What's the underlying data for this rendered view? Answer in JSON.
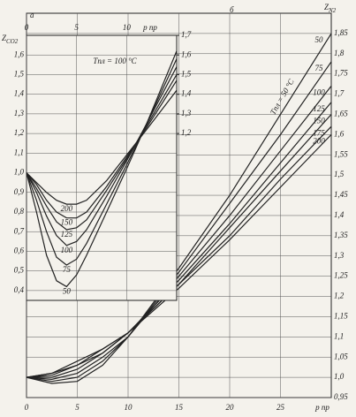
{
  "chart_data": [
    {
      "type": "line",
      "panel": "а",
      "ylabel": "Z",
      "ylabel_sub": "CO2",
      "xlabel": "р пр",
      "annotation": "Tпл = 100 °С",
      "x": [
        0,
        1,
        2,
        3,
        4,
        5,
        6,
        8,
        10,
        12,
        15
      ],
      "xlim": [
        0,
        15
      ],
      "xticks": [
        0,
        5,
        10
      ],
      "ylim": [
        0.35,
        1.7
      ],
      "yticks": [
        {
          "value": 0.4,
          "label": "0,4"
        },
        {
          "value": 0.5,
          "label": "0,5"
        },
        {
          "value": 0.6,
          "label": "0,6"
        },
        {
          "value": 0.7,
          "label": "0,7"
        },
        {
          "value": 0.8,
          "label": "0,8"
        },
        {
          "value": 0.9,
          "label": "0,9"
        },
        {
          "value": 1.0,
          "label": "1,0"
        },
        {
          "value": 1.1,
          "label": "1,1"
        },
        {
          "value": 1.2,
          "label": "1,2"
        },
        {
          "value": 1.3,
          "label": "1,3"
        },
        {
          "value": 1.4,
          "label": "1,4"
        },
        {
          "value": 1.5,
          "label": "1,5"
        },
        {
          "value": 1.6,
          "label": "1,6"
        }
      ],
      "y2lim": [
        0.35,
        1.7
      ],
      "y2ticks": [
        {
          "value": 1.2,
          "label": "1,2"
        },
        {
          "value": 1.3,
          "label": "1,3"
        },
        {
          "value": 1.4,
          "label": "1,4"
        },
        {
          "value": 1.5,
          "label": "1,5"
        },
        {
          "value": 1.6,
          "label": "1,6"
        },
        {
          "value": 1.7,
          "label": "1,7"
        }
      ],
      "grid": true,
      "series": [
        {
          "name": "50",
          "color": "#222222",
          "values": [
            1.0,
            0.8,
            0.58,
            0.45,
            0.42,
            0.48,
            0.58,
            0.8,
            1.02,
            1.25,
            1.62
          ]
        },
        {
          "name": "75",
          "color": "#222222",
          "values": [
            1.0,
            0.86,
            0.7,
            0.57,
            0.53,
            0.56,
            0.64,
            0.84,
            1.04,
            1.25,
            1.58
          ]
        },
        {
          "name": "100",
          "color": "#222222",
          "values": [
            1.0,
            0.9,
            0.78,
            0.68,
            0.63,
            0.65,
            0.71,
            0.88,
            1.06,
            1.25,
            1.54
          ]
        },
        {
          "name": "125",
          "color": "#222222",
          "values": [
            1.0,
            0.92,
            0.83,
            0.75,
            0.71,
            0.72,
            0.76,
            0.91,
            1.07,
            1.24,
            1.5
          ]
        },
        {
          "name": "150",
          "color": "#222222",
          "values": [
            1.0,
            0.94,
            0.86,
            0.8,
            0.77,
            0.77,
            0.8,
            0.93,
            1.08,
            1.23,
            1.47
          ]
        },
        {
          "name": "200",
          "color": "#222222",
          "values": [
            1.0,
            0.95,
            0.9,
            0.86,
            0.84,
            0.84,
            0.86,
            0.96,
            1.09,
            1.22,
            1.42
          ]
        }
      ]
    },
    {
      "type": "line",
      "panel": "б",
      "ylabel": "Z",
      "ylabel_sub": "N2",
      "xlabel": "р пр",
      "annotation": "Tпл = 50 °С",
      "x": [
        0,
        2.5,
        5,
        7.5,
        10,
        15,
        20,
        25,
        30
      ],
      "xlim": [
        0,
        30
      ],
      "xticks": [
        0,
        5,
        10,
        15,
        20,
        25
      ],
      "ylim": [
        0.95,
        1.9
      ],
      "yticks": [
        {
          "value": 0.95,
          "label": "0,95"
        },
        {
          "value": 1.0,
          "label": "1,0"
        },
        {
          "value": 1.05,
          "label": "1,05"
        },
        {
          "value": 1.1,
          "label": "1,1"
        },
        {
          "value": 1.15,
          "label": "1,15"
        },
        {
          "value": 1.2,
          "label": "1,2"
        },
        {
          "value": 1.25,
          "label": "1,25"
        },
        {
          "value": 1.3,
          "label": "1,3"
        },
        {
          "value": 1.35,
          "label": "1,35"
        },
        {
          "value": 1.4,
          "label": "1,4"
        },
        {
          "value": 1.45,
          "label": "1,45"
        },
        {
          "value": 1.5,
          "label": "1,5"
        },
        {
          "value": 1.55,
          "label": "1,55"
        },
        {
          "value": 1.6,
          "label": "1,6"
        },
        {
          "value": 1.65,
          "label": "1,65"
        },
        {
          "value": 1.7,
          "label": "1,7"
        },
        {
          "value": 1.75,
          "label": "1,75"
        },
        {
          "value": 1.8,
          "label": "1,8"
        },
        {
          "value": 1.85,
          "label": "1,85"
        }
      ],
      "grid": true,
      "series": [
        {
          "name": "50",
          "color": "#222222",
          "values": [
            1.0,
            0.985,
            0.99,
            1.03,
            1.1,
            1.27,
            1.45,
            1.65,
            1.85
          ]
        },
        {
          "name": "75",
          "color": "#222222",
          "values": [
            1.0,
            0.99,
            1.0,
            1.04,
            1.1,
            1.26,
            1.43,
            1.6,
            1.78
          ]
        },
        {
          "name": "100",
          "color": "#222222",
          "values": [
            1.0,
            0.995,
            1.01,
            1.05,
            1.1,
            1.25,
            1.4,
            1.56,
            1.72
          ]
        },
        {
          "name": "125",
          "color": "#222222",
          "values": [
            1.0,
            1.0,
            1.02,
            1.06,
            1.11,
            1.24,
            1.38,
            1.53,
            1.68
          ]
        },
        {
          "name": "150",
          "color": "#222222",
          "values": [
            1.0,
            1.005,
            1.03,
            1.06,
            1.11,
            1.23,
            1.37,
            1.51,
            1.65
          ]
        },
        {
          "name": "175",
          "color": "#222222",
          "values": [
            1.0,
            1.01,
            1.03,
            1.07,
            1.11,
            1.23,
            1.35,
            1.49,
            1.62
          ]
        },
        {
          "name": "200",
          "color": "#222222",
          "values": [
            1.0,
            1.01,
            1.04,
            1.07,
            1.11,
            1.22,
            1.34,
            1.47,
            1.6
          ]
        }
      ]
    }
  ]
}
